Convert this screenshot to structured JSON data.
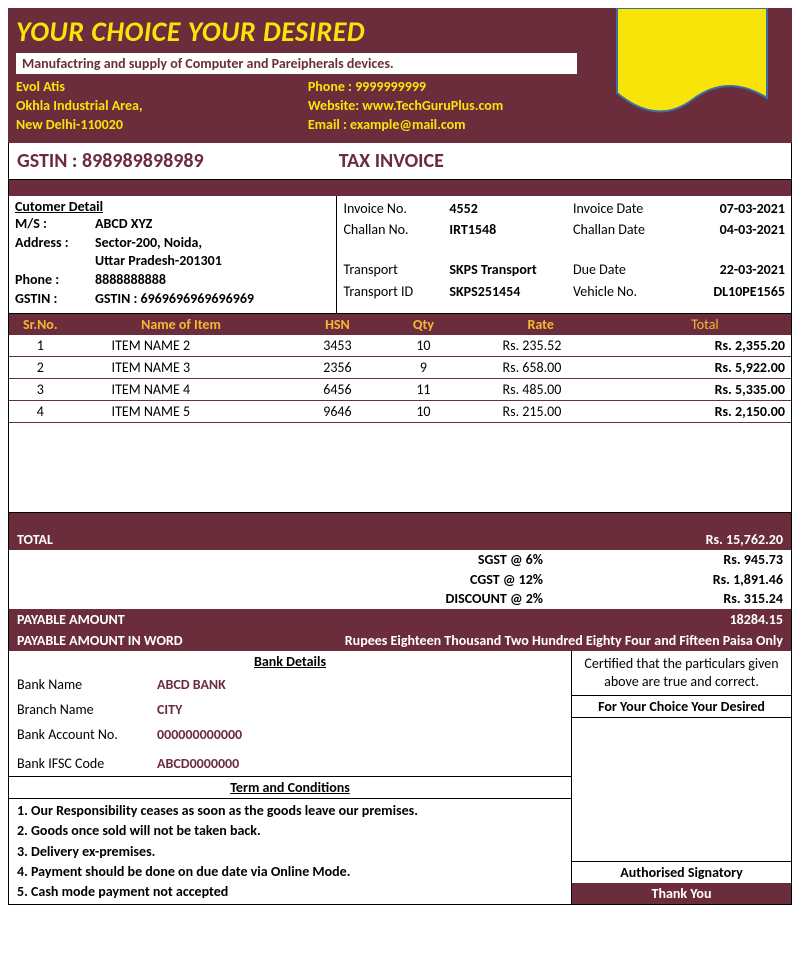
{
  "colors": {
    "brand": "#6b2d3c",
    "accent": "#f9e40a",
    "col_hdr": "#f7b733",
    "white": "#ffffff"
  },
  "company": {
    "name": "YOUR CHOICE YOUR DESIRED",
    "tagline": "Manufactring and supply of Computer and Pareipherals devices.",
    "contact_name": "Evol Atis",
    "addr1": "Okhla Industrial Area,",
    "addr2": "New Delhi-110020",
    "phone": "Phone : 9999999999",
    "website": "Website: www.TechGuruPlus.com",
    "email": "Email : example@mail.com"
  },
  "gstin_label": "GSTIN :",
  "gstin": "898989898989",
  "doc_title": "TAX INVOICE",
  "customer": {
    "header": "Cutomer Detail",
    "ms_lbl": "M/S :",
    "ms": "ABCD XYZ",
    "addr_lbl": "Address :",
    "addr1": "Sector-200, Noida,",
    "addr2": "Uttar Pradesh-201301",
    "phone_lbl": "Phone :",
    "phone": "8888888888",
    "gstin_lbl": "GSTIN :",
    "gstin": "GSTIN : 6969696969696969"
  },
  "meta": {
    "inv_no_lbl": "Invoice No.",
    "inv_no": "4552",
    "inv_date_lbl": "Invoice Date",
    "inv_date": "07-03-2021",
    "ch_no_lbl": "Challan No.",
    "ch_no": "IRT1548",
    "ch_date_lbl": "Challan Date",
    "ch_date": "04-03-2021",
    "tr_lbl": "Transport",
    "tr": "SKPS Transport",
    "due_lbl": "Due Date",
    "due": "22-03-2021",
    "trid_lbl": "Transport ID",
    "trid": "SKPS251454",
    "veh_lbl": "Vehicle No.",
    "veh": "DL10PE1565"
  },
  "cols": {
    "sr": "Sr.No.",
    "name": "Name of Item",
    "hsn": "HSN",
    "qty": "Qty",
    "rate": "Rate",
    "total": "Total"
  },
  "items": [
    {
      "sr": "1",
      "name": "ITEM NAME 2",
      "hsn": "3453",
      "qty": "10",
      "rate": "Rs. 235.52",
      "total": "Rs. 2,355.20"
    },
    {
      "sr": "2",
      "name": "ITEM NAME 3",
      "hsn": "2356",
      "qty": "9",
      "rate": "Rs. 658.00",
      "total": "Rs. 5,922.00"
    },
    {
      "sr": "3",
      "name": "ITEM NAME 4",
      "hsn": "6456",
      "qty": "11",
      "rate": "Rs. 485.00",
      "total": "Rs. 5,335.00"
    },
    {
      "sr": "4",
      "name": "ITEM NAME 5",
      "hsn": "9646",
      "qty": "10",
      "rate": "Rs. 215.00",
      "total": "Rs. 2,150.00"
    }
  ],
  "totals": {
    "total_lbl": "TOTAL",
    "total": "Rs. 15,762.20",
    "sgst_lbl": "SGST @ 6%",
    "sgst": "Rs. 945.73",
    "cgst_lbl": "CGST @ 12%",
    "cgst": "Rs. 1,891.46",
    "disc_lbl": "DISCOUNT @ 2%",
    "disc": "Rs. 315.24",
    "pay_lbl": "PAYABLE AMOUNT",
    "pay": "18284.15",
    "words_lbl": "PAYABLE AMOUNT IN  WORD",
    "words": "Rupees Eighteen Thousand  Two Hundred Eighty Four and Fifteen Paisa Only"
  },
  "bank": {
    "hdr": "Bank Details",
    "name_lbl": "Bank Name",
    "name": "ABCD BANK",
    "branch_lbl": "Branch Name",
    "branch": "CITY",
    "acct_lbl": "Bank Account No.",
    "acct": "000000000000",
    "ifsc_lbl": "Bank IFSC Code",
    "ifsc": "ABCD0000000"
  },
  "tc": {
    "hdr": "Term and Conditions",
    "t1": "1. Our Responsibility ceases as soon as the goods leave our premises.",
    "t2": "2. Goods once sold will not be taken back.",
    "t3": "3. Delivery ex-premises.",
    "t4": "4. Payment should be done on due date via Online Mode.",
    "t5": "5. Cash mode payment not accepted"
  },
  "sign": {
    "cert": "Certified that the particulars given above are true and correct.",
    "for": "For Your Choice Your Desired",
    "auth": "Authorised Signatory",
    "thank": "Thank You"
  }
}
